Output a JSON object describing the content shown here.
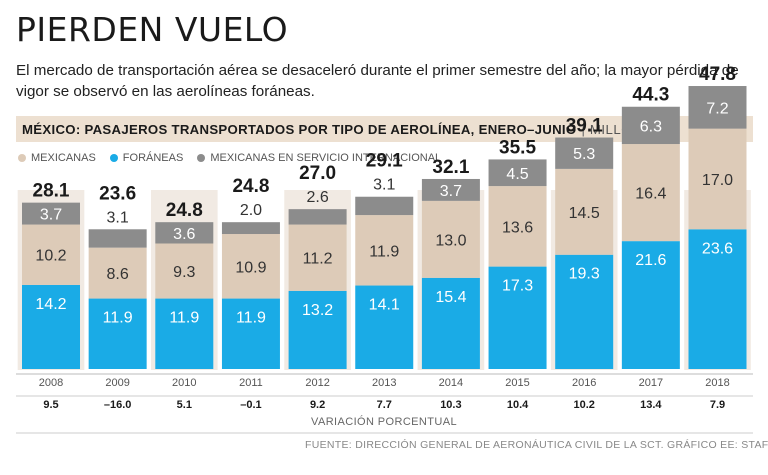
{
  "headline": "PIERDEN VUELO",
  "deck": "El mercado de transportación aérea se desaceleró durante el primer semestre del año; la mayor pérdida de vigor se observó en las aerolíneas foráneas.",
  "section": {
    "title": "MÉXICO: PASAJEROS TRANSPORTADOS POR TIPO DE AEROLÍNEA, ENERO–JUNIO",
    "separator": "|",
    "unit": "MILLONES"
  },
  "legend": [
    {
      "label": "MEXICANAS",
      "color": "#ddcbb8"
    },
    {
      "label": "FORÁNEAS",
      "color": "#1aabe6"
    },
    {
      "label": "MEXICANAS EN SERVICIO INTERNACIONAL",
      "color": "#8c8c8c"
    }
  ],
  "colors": {
    "foraneas": "#1aabe6",
    "mexicanas": "#ddcbb8",
    "intl": "#8c8c8c",
    "shadow": "#f1eae3"
  },
  "chart_data": {
    "type": "bar",
    "stacked": true,
    "title": "MÉXICO: PASAJEROS TRANSPORTADOS POR TIPO DE AEROLÍNEA, ENERO–JUNIO",
    "ylabel": "MILLONES",
    "categories": [
      "2008",
      "2009",
      "2010",
      "2011",
      "2012",
      "2013",
      "2014",
      "2015",
      "2016",
      "2017",
      "2018"
    ],
    "series": [
      {
        "name": "FORÁNEAS",
        "values": [
          14.2,
          11.9,
          11.9,
          11.9,
          13.2,
          14.1,
          15.4,
          17.3,
          19.3,
          21.6,
          23.6
        ]
      },
      {
        "name": "MEXICANAS",
        "values": [
          10.2,
          8.6,
          9.3,
          10.9,
          11.2,
          11.9,
          13.0,
          13.6,
          14.5,
          16.4,
          17.0
        ]
      },
      {
        "name": "MEXICANAS EN SERVICIO INTERNACIONAL",
        "values": [
          3.7,
          3.1,
          3.6,
          2.0,
          2.6,
          3.1,
          3.7,
          4.5,
          5.3,
          6.3,
          7.2
        ]
      }
    ],
    "totals": [
      "28.1",
      "23.6",
      "24.8",
      "24.8",
      "27.0",
      "29.1",
      "32.1",
      "35.5",
      "39.1",
      "44.3",
      "47.8"
    ],
    "labels": {
      "foraneas": [
        "14.2",
        "11.9",
        "11.9",
        "11.9",
        "13.2",
        "14.1",
        "15.4",
        "17.3",
        "19.3",
        "21.6",
        "23.6"
      ],
      "mexicanas": [
        "10.2",
        "8.6",
        "9.3",
        "10.9",
        "11.2",
        "11.9",
        "13.0",
        "13.6",
        "14.5",
        "16.4",
        "17.0"
      ],
      "intl": [
        "3.7",
        "3.1",
        "3.6",
        "2.0",
        "2.6",
        "3.1",
        "3.7",
        "4.5",
        "5.3",
        "6.3",
        "7.2"
      ]
    },
    "variacion_porcentual": [
      "9.5",
      "–16.0",
      "5.1",
      "–0.1",
      "9.2",
      "7.7",
      "10.3",
      "10.4",
      "10.2",
      "13.4",
      "7.9"
    ],
    "variacion_label": "VARIACIÓN PORCENTUAL",
    "ylim": [
      0,
      47.8
    ]
  },
  "source": "FUENTE: DIRECCIÓN GENERAL DE AERONÁUTICA CIVIL DE LA SCT. GRÁFICO EE: STAFF"
}
